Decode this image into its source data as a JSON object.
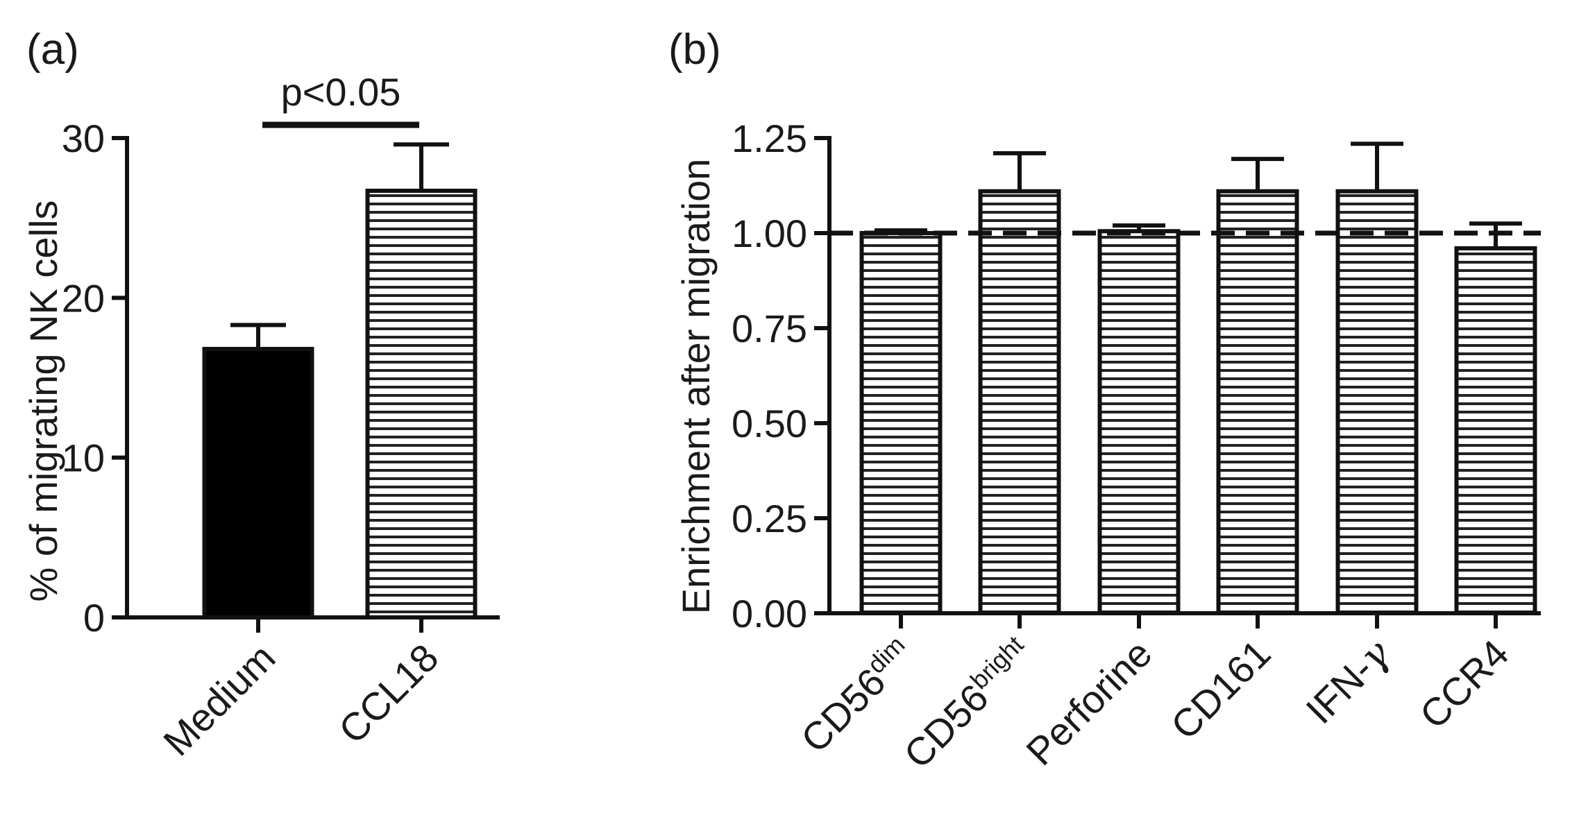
{
  "chart_data": [
    {
      "panel": "(a)",
      "type": "bar",
      "categories": [
        "Medium",
        "CCL18"
      ],
      "values": [
        16.8,
        26.7
      ],
      "errors": [
        1.5,
        2.9
      ],
      "fills": [
        "solid",
        "striped"
      ],
      "ylabel": "% of migrating NK cells",
      "xlabel": "",
      "ylim": [
        0,
        30
      ],
      "yticks": [
        "0",
        "10",
        "20",
        "30"
      ],
      "annotation": "p<0.05"
    },
    {
      "panel": "(b)",
      "type": "bar",
      "categories": [
        {
          "base": "CD56",
          "sup": "dim"
        },
        {
          "base": "CD56",
          "sup": "bright"
        },
        {
          "base": "Perforine",
          "sup": ""
        },
        {
          "base": "CD161",
          "sup": ""
        },
        {
          "base": "IFN-",
          "greek": "γ"
        },
        {
          "base": "CCR4",
          "sup": ""
        }
      ],
      "values": [
        1.0,
        1.11,
        1.005,
        1.11,
        1.11,
        0.96
      ],
      "errors": [
        0.007,
        0.1,
        0.015,
        0.085,
        0.125,
        0.065
      ],
      "ylabel": "Enrichment after migration",
      "xlabel": "",
      "ylim": [
        0,
        1.25
      ],
      "yticks": [
        "0.00",
        "0.25",
        "0.50",
        "0.75",
        "1.00",
        "1.25"
      ],
      "reference_line": 1.0
    }
  ],
  "colors": {
    "ink": "#111111",
    "solid_fill": "#000000",
    "stripe": "#222222",
    "background": "#ffffff"
  }
}
